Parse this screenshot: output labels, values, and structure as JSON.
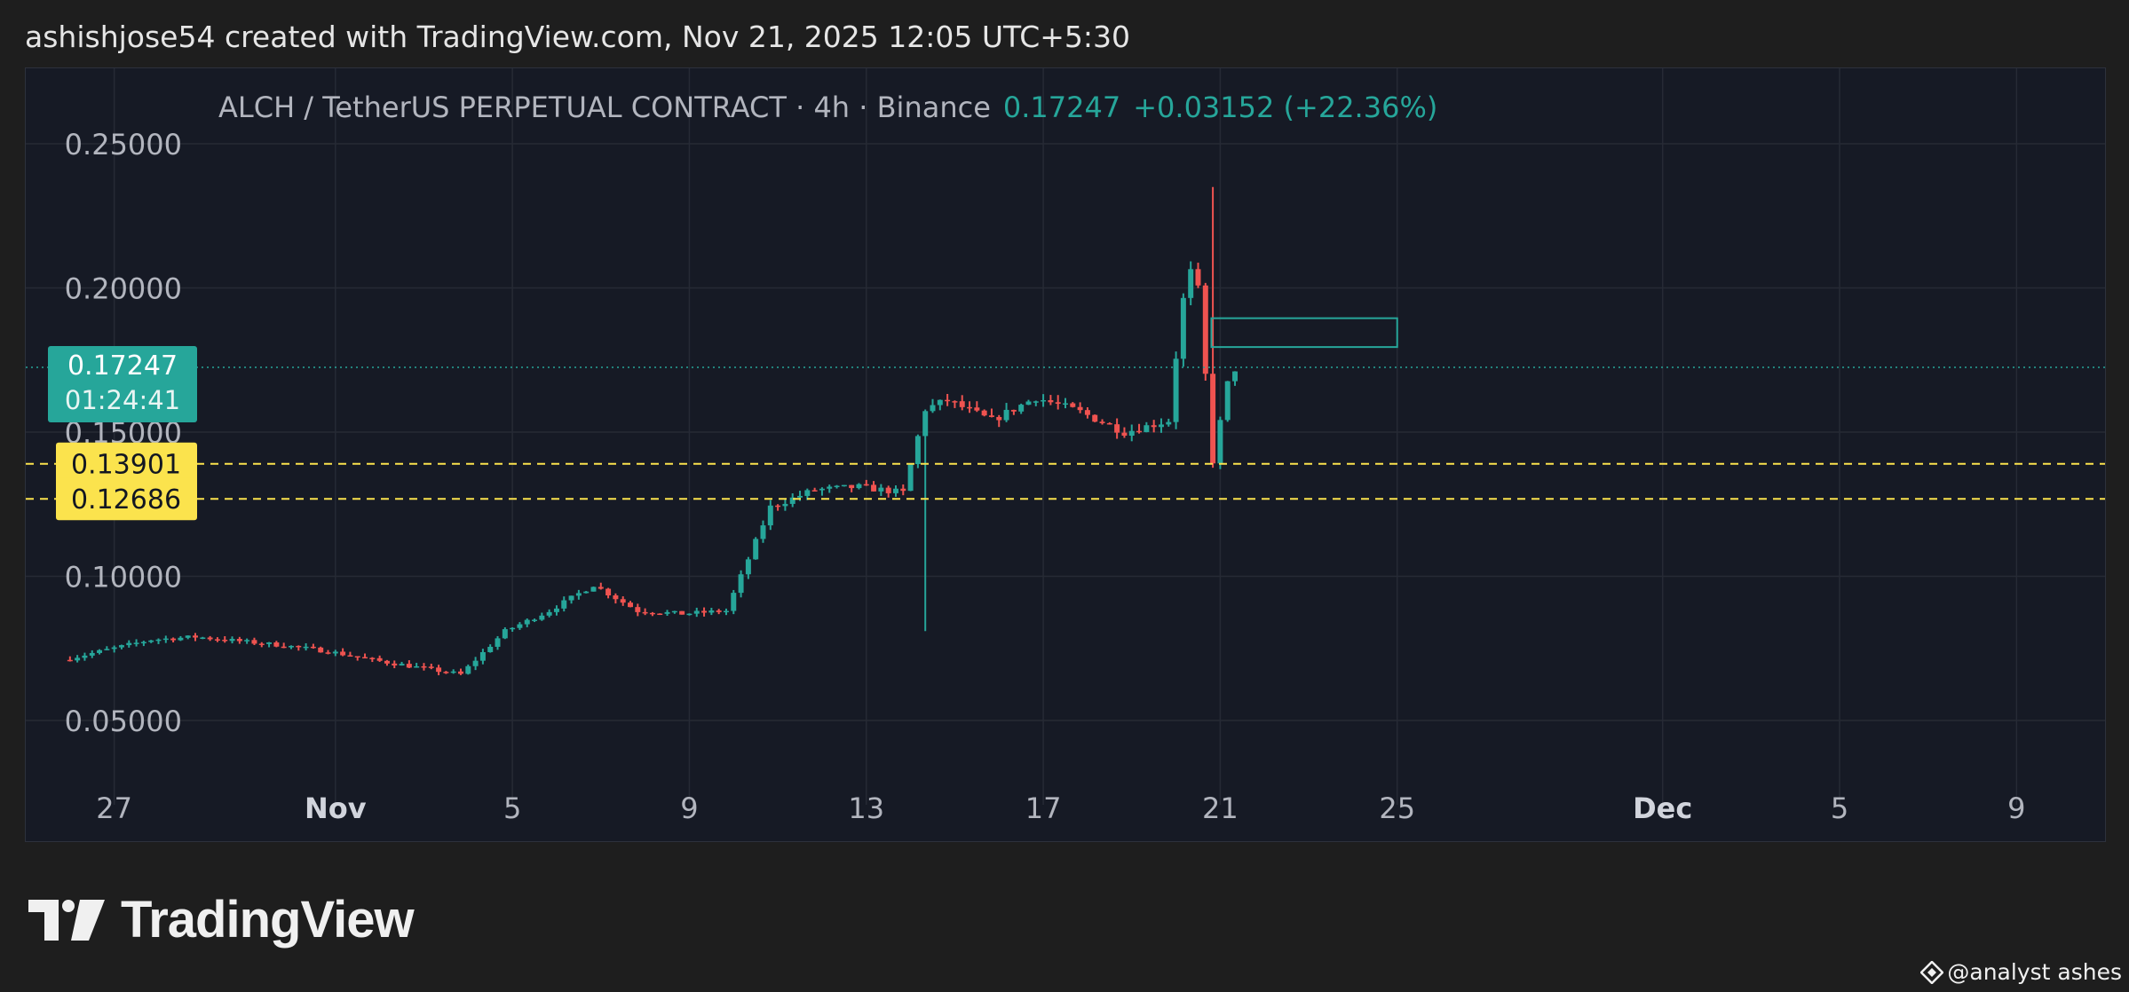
{
  "header": {
    "attribution": "ashishjose54 created with TradingView.com, Nov 21, 2025 12:05 UTC+5:30"
  },
  "symbol": {
    "title": "ALCH / TetherUS PERPETUAL CONTRACT · 4h · Binance",
    "last_price": "0.17247",
    "change": "+0.03152 (+22.36%)"
  },
  "brand": {
    "wordmark": "TradingView"
  },
  "watermark": {
    "text": "@analyst ashes"
  },
  "colors": {
    "up": "#26a69a",
    "down": "#ef5350",
    "level_line": "#fbe34d",
    "background": "#161a25"
  },
  "chart_data": {
    "type": "candlestick",
    "title": "ALCH / TetherUS PERPETUAL CONTRACT · 4h · Binance",
    "x_axis": {
      "range": [
        "2025-10-25",
        "2025-12-11"
      ],
      "tick_labels": [
        {
          "date": "2025-10-27",
          "label": "27",
          "bold": false
        },
        {
          "date": "2025-11-01",
          "label": "Nov",
          "bold": true
        },
        {
          "date": "2025-11-05",
          "label": "5",
          "bold": false
        },
        {
          "date": "2025-11-09",
          "label": "9",
          "bold": false
        },
        {
          "date": "2025-11-13",
          "label": "13",
          "bold": false
        },
        {
          "date": "2025-11-17",
          "label": "17",
          "bold": false
        },
        {
          "date": "2025-11-21",
          "label": "21",
          "bold": false
        },
        {
          "date": "2025-11-25",
          "label": "25",
          "bold": false
        },
        {
          "date": "2025-12-01",
          "label": "Dec",
          "bold": true
        },
        {
          "date": "2025-12-05",
          "label": "5",
          "bold": false
        },
        {
          "date": "2025-12-09",
          "label": "9",
          "bold": false
        }
      ]
    },
    "y_axis": {
      "range": [
        0.03,
        0.27
      ],
      "tick_labels": [
        "0.05000",
        "0.10000",
        "0.15000",
        "0.20000",
        "0.25000"
      ],
      "tick_values": [
        0.05,
        0.1,
        0.15,
        0.2,
        0.25
      ]
    },
    "grid": true,
    "key_points": [
      {
        "date": "2025-10-26",
        "price": 0.071
      },
      {
        "date": "2025-10-28",
        "price": 0.078
      },
      {
        "date": "2025-10-29",
        "price": 0.079
      },
      {
        "date": "2025-10-31",
        "price": 0.076
      },
      {
        "date": "2025-11-01",
        "price": 0.074
      },
      {
        "date": "2025-11-02",
        "price": 0.071
      },
      {
        "date": "2025-11-04",
        "price": 0.066
      },
      {
        "date": "2025-11-05",
        "price": 0.081
      },
      {
        "date": "2025-11-06",
        "price": 0.088
      },
      {
        "date": "2025-11-07",
        "price": 0.097
      },
      {
        "date": "2025-11-08",
        "price": 0.088
      },
      {
        "date": "2025-11-09",
        "price": 0.087
      },
      {
        "date": "2025-11-10",
        "price": 0.088
      },
      {
        "date": "2025-11-10.5",
        "price": 0.106
      },
      {
        "date": "2025-11-11",
        "price": 0.124
      },
      {
        "date": "2025-11-12",
        "price": 0.13
      },
      {
        "date": "2025-11-13",
        "price": 0.131
      },
      {
        "date": "2025-11-14",
        "price": 0.129
      },
      {
        "date": "2025-11-14.5",
        "price": 0.158
      },
      {
        "date": "2025-11-15",
        "price": 0.161
      },
      {
        "date": "2025-11-16",
        "price": 0.154
      },
      {
        "date": "2025-11-17",
        "price": 0.162
      },
      {
        "date": "2025-11-18",
        "price": 0.157
      },
      {
        "date": "2025-11-19",
        "price": 0.15
      },
      {
        "date": "2025-11-20",
        "price": 0.154
      },
      {
        "date": "2025-11-20.3",
        "price": 0.194
      },
      {
        "date": "2025-11-20.6",
        "price": 0.211
      },
      {
        "date": "2025-11-21",
        "price": 0.14
      },
      {
        "date": "2025-11-21.4",
        "price": 0.172
      }
    ],
    "extremes": {
      "high_wick": {
        "date": "2025-11-20.8",
        "price": 0.235
      },
      "low_wick": {
        "date": "2025-11-14.4",
        "price": 0.081
      }
    },
    "last_price": {
      "value": 0.17247,
      "label": "0.17247",
      "countdown": "01:24:41"
    },
    "horizontal_levels": [
      {
        "value": 0.13901,
        "label": "0.13901",
        "style": "dashed"
      },
      {
        "value": 0.12686,
        "label": "0.12686",
        "style": "dashed"
      }
    ],
    "rectangle": {
      "from_date": "2025-11-20.8",
      "to_date": "2025-11-25",
      "price_top": 0.1895,
      "price_bottom": 0.1795
    }
  }
}
